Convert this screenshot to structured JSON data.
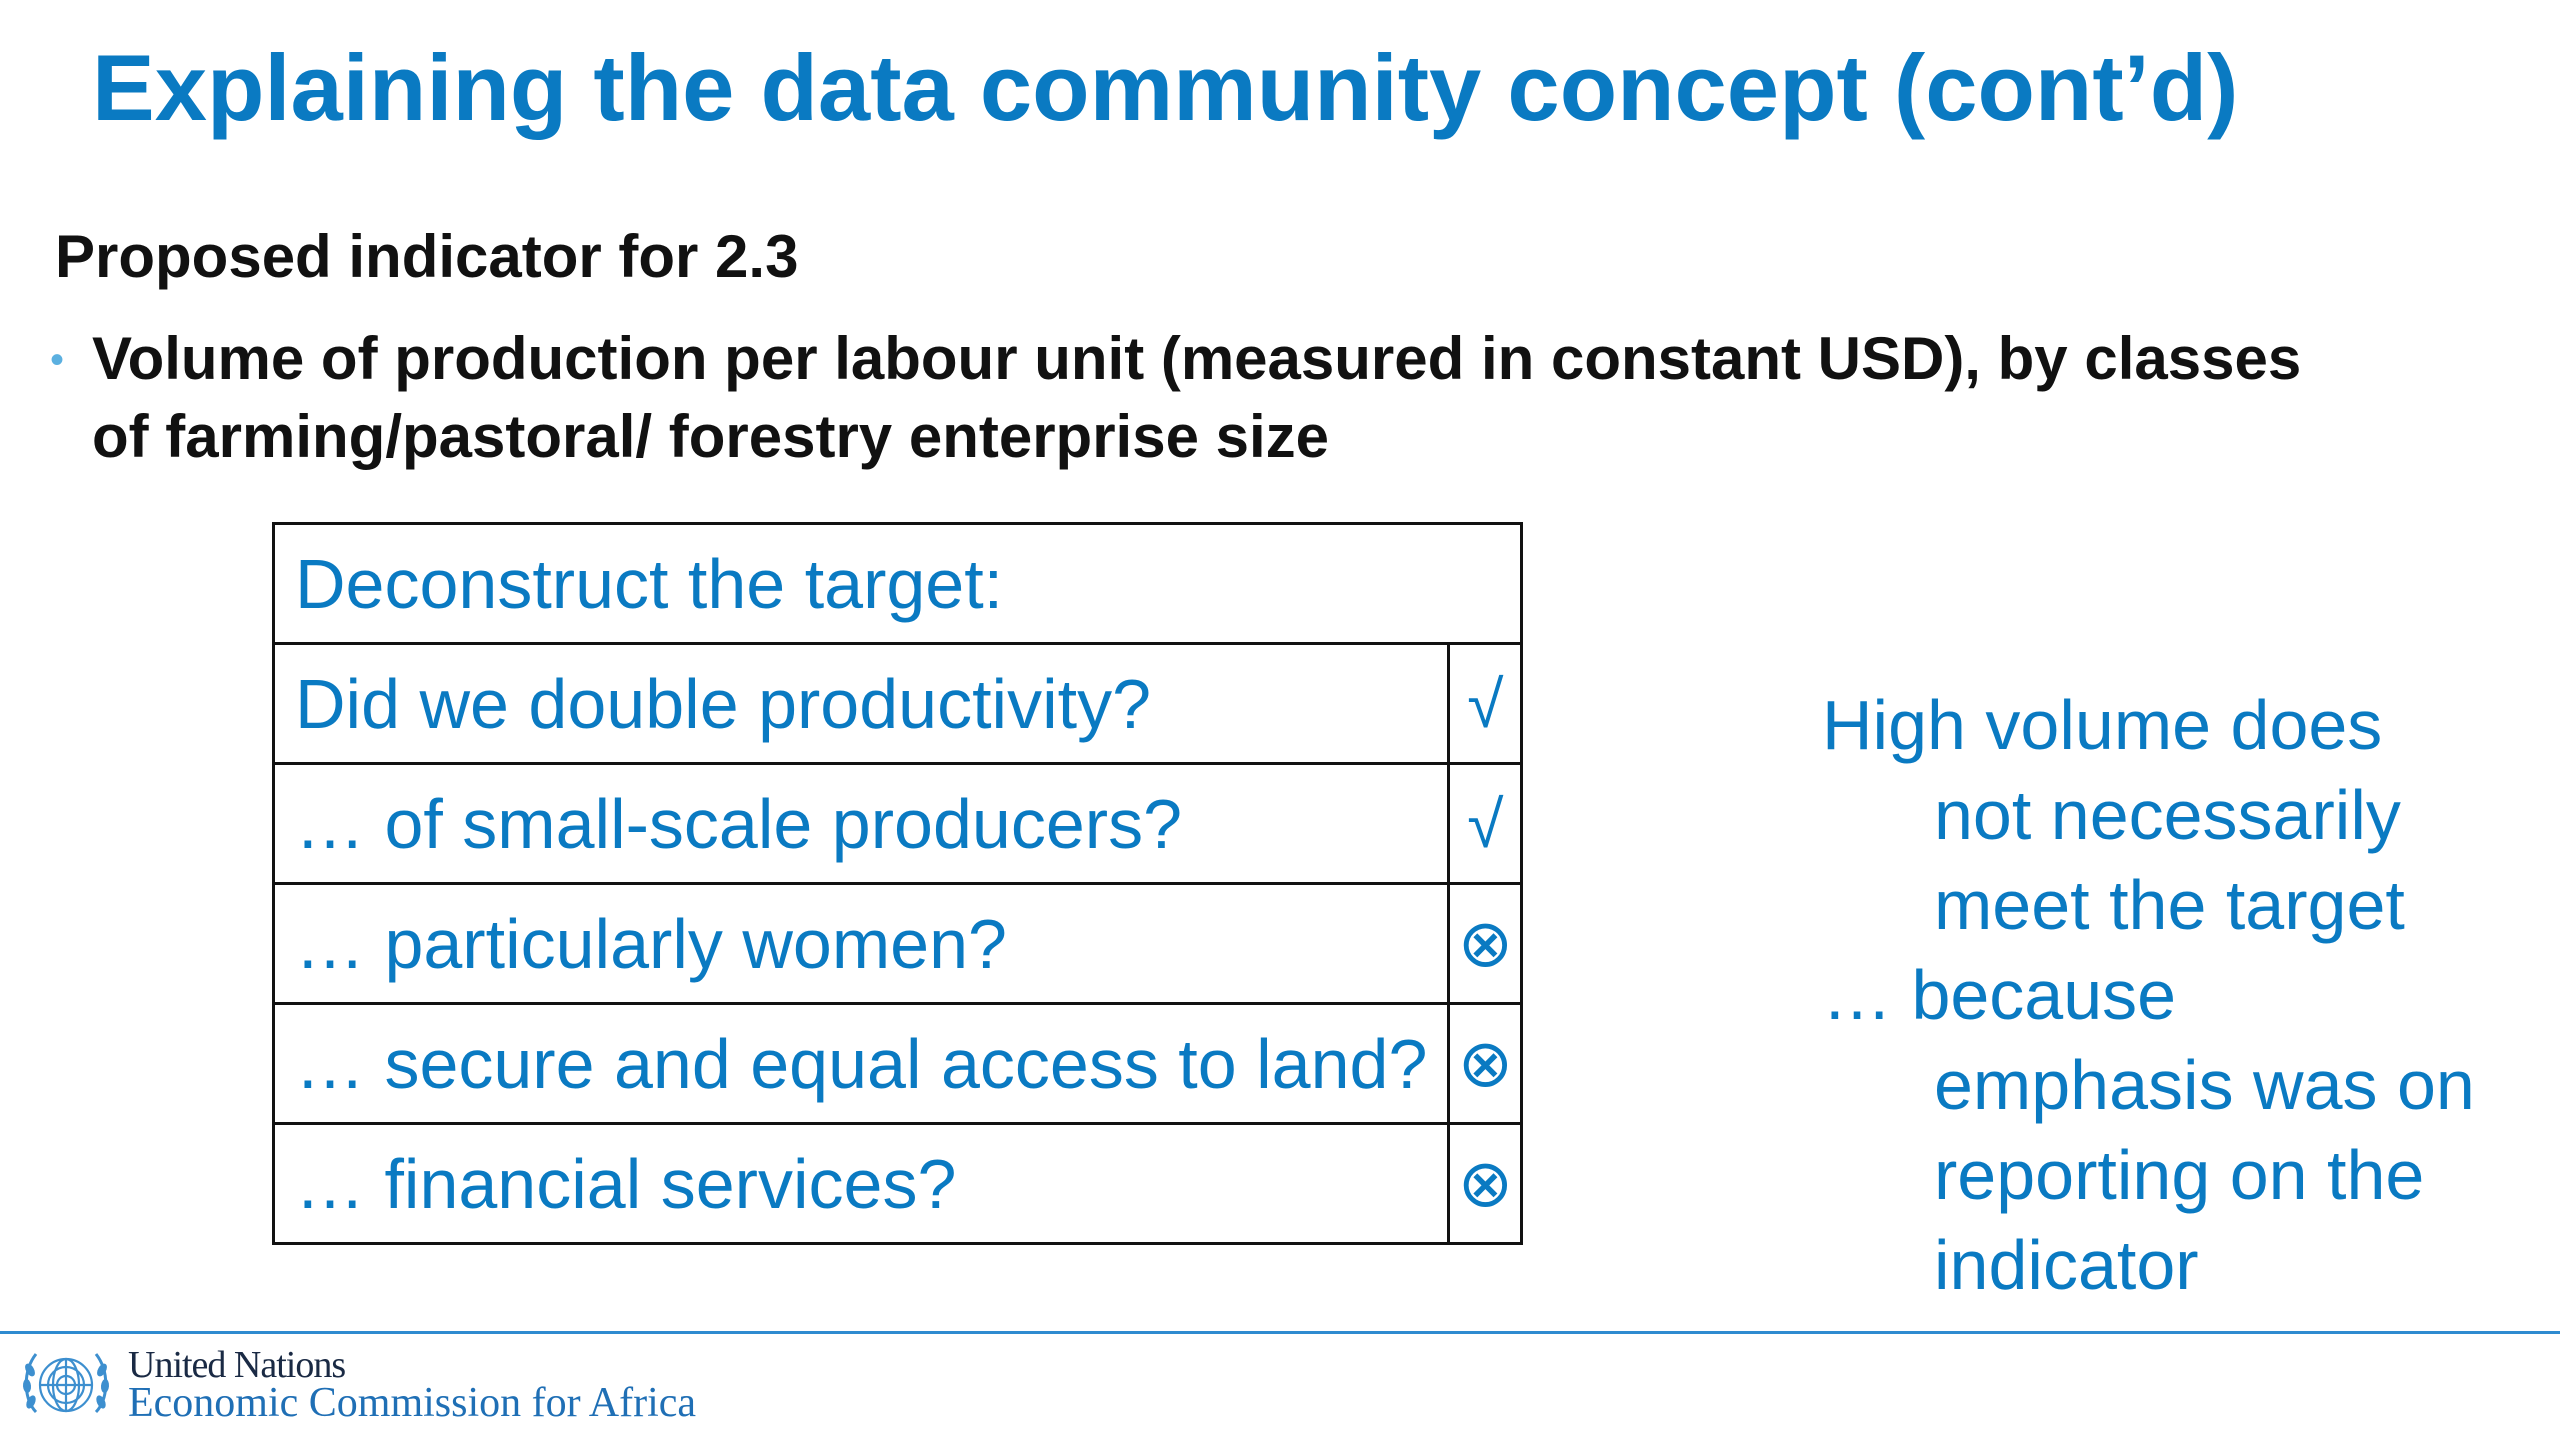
{
  "slide": {
    "title": "Explaining the data community concept (cont’d)",
    "subheading": "Proposed indicator for 2.3",
    "bullet": {
      "line1": "Volume of production per labour unit (measured in constant USD), by classes",
      "line2": "of farming/pastoral/ forestry enterprise size"
    }
  },
  "table": {
    "header": "Deconstruct the target:",
    "rows": [
      {
        "question": "Did we double productivity?",
        "mark": "√"
      },
      {
        "question": "… of small-scale producers?",
        "mark": "√"
      },
      {
        "question": "… particularly women?",
        "mark": "⊗"
      },
      {
        "question": "… secure and equal access to land?",
        "mark": "⊗"
      },
      {
        "question": "… financial services?",
        "mark": "⊗"
      }
    ]
  },
  "note": {
    "lines": [
      "High volume does",
      "not necessarily",
      "meet the target",
      "… because",
      "emphasis was on",
      "reporting on the",
      "indicator"
    ]
  },
  "footer": {
    "org_line1": "United Nations",
    "org_line2": "Economic Commission for Africa",
    "logo_icon": "un-emblem-icon",
    "colors": {
      "title_blue": "#0a7ac2",
      "rule_blue": "#2f8bd0"
    }
  }
}
